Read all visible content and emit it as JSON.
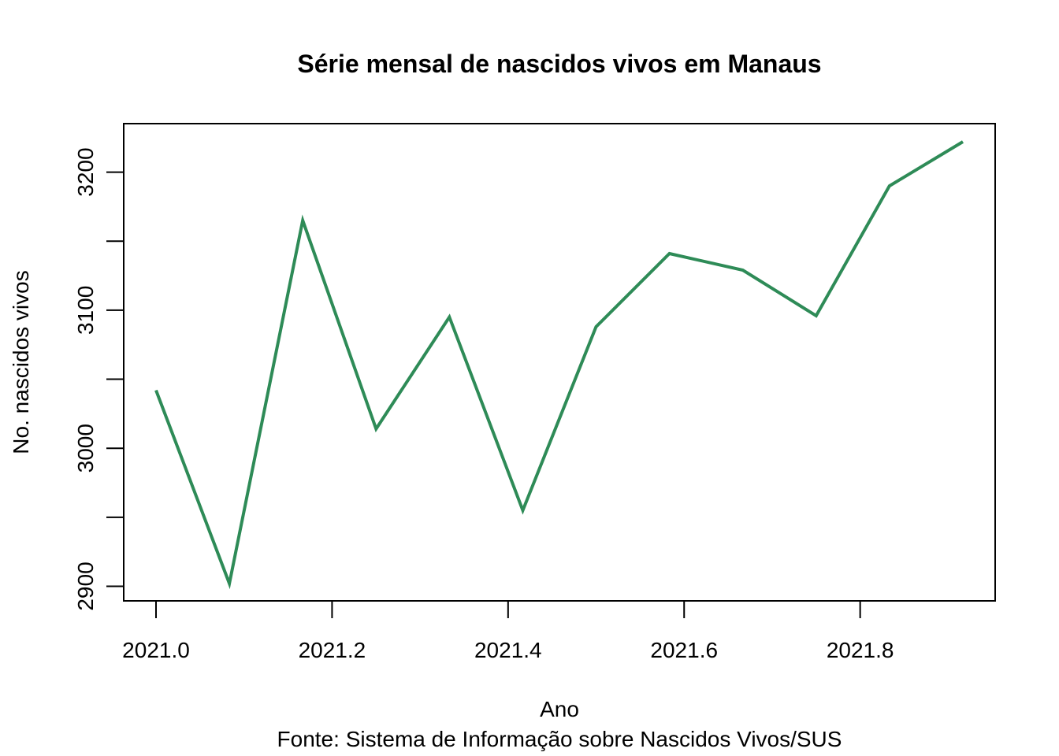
{
  "chart_data": {
    "type": "line",
    "title": "Série mensal de nascidos vivos em Manaus",
    "xlabel": "Ano",
    "ylabel": "No. nascidos vivos",
    "caption": "Fonte: Sistema de Informação sobre Nascidos Vivos/SUS",
    "xlim": [
      2021.0,
      2021.9167
    ],
    "ylim": [
      2902,
      3222
    ],
    "x_ticks": [
      2021.0,
      2021.2,
      2021.4,
      2021.6,
      2021.8
    ],
    "x_tick_labels": [
      "2021.0",
      "2021.2",
      "2021.4",
      "2021.6",
      "2021.8"
    ],
    "y_ticks": [
      2900,
      2950,
      3000,
      3050,
      3100,
      3150,
      3200
    ],
    "y_tick_labels": [
      "2900",
      "",
      "3000",
      "",
      "3100",
      "",
      "3200"
    ],
    "grid": false,
    "legend": "none",
    "series": [
      {
        "color": "#2E8B57",
        "x": [
          2021.0,
          2021.0833,
          2021.1667,
          2021.25,
          2021.3333,
          2021.4167,
          2021.5,
          2021.5833,
          2021.6667,
          2021.75,
          2021.8333,
          2021.9167
        ],
        "values": [
          3042,
          2902,
          3165,
          3014,
          3095,
          2955,
          3088,
          3141,
          3129,
          3096,
          3190,
          3222
        ]
      }
    ]
  }
}
